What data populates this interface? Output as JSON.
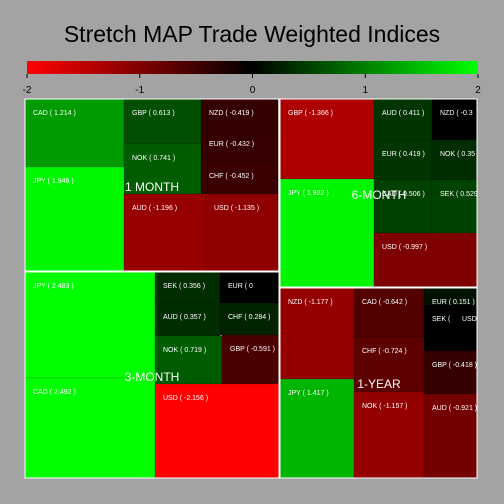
{
  "chart_data": {
    "type": "treemap",
    "title": "Stretch MAP Trade Weighted Indices",
    "colorbar": {
      "ticks": [
        -2,
        -1,
        0,
        1,
        2
      ],
      "range": [
        -2,
        2
      ],
      "colors": [
        "#ff0000",
        "#000000",
        "#00ff00"
      ]
    },
    "panels": [
      {
        "name": "1 MONTH",
        "items": [
          {
            "code": "CAD",
            "value": 1.214,
            "label": "CAD ( 1.214 )"
          },
          {
            "code": "GBP",
            "value": 0.613,
            "label": "GBP ( 0.613 )"
          },
          {
            "code": "NZD",
            "value": -0.419,
            "label": "NZD ( -0.419 )"
          },
          {
            "code": "EUR",
            "value": -0.432,
            "label": "EUR ( -0.432 )"
          },
          {
            "code": "NOK",
            "value": 0.741,
            "label": "NOK ( 0.741 )"
          },
          {
            "code": "CHF",
            "value": -0.452,
            "label": "CHF ( -0.452 )"
          },
          {
            "code": "JPY",
            "value": 1.946,
            "label": "JPY ( 1.946 )"
          },
          {
            "code": "AUD",
            "value": -1.196,
            "label": "AUD ( -1.196 )"
          },
          {
            "code": "USD",
            "value": -1.135,
            "label": "USD ( -1.135 )"
          }
        ]
      },
      {
        "name": "6-MONTH",
        "items": [
          {
            "code": "GBP",
            "value": -1.366,
            "label": "GBP ( -1.366 )"
          },
          {
            "code": "AUD",
            "value": 0.411,
            "label": "AUD ( 0.411 )"
          },
          {
            "code": "NZD",
            "value": null,
            "label": "NZD ( -0.3"
          },
          {
            "code": "EUR",
            "value": 0.419,
            "label": "EUR ( 0.419 )"
          },
          {
            "code": "NOK",
            "value": 0.35,
            "label": "NOK ( 0.35 )"
          },
          {
            "code": "JPY",
            "value": 1.922,
            "label": "JPY ( 1.922 )"
          },
          {
            "code": "CAD",
            "value": 0.506,
            "label": "CAD ( 0.506 )"
          },
          {
            "code": "SEK",
            "value": 0.529,
            "label": "SEK ( 0.529"
          },
          {
            "code": "USD",
            "value": -0.997,
            "label": "USD ( -0.997 )"
          }
        ]
      },
      {
        "name": "3-MONTH",
        "items": [
          {
            "code": "JPY",
            "value": 2.483,
            "label": "JPY ( 2.483 )"
          },
          {
            "code": "SEK",
            "value": 0.356,
            "label": "SEK ( 0.356 )"
          },
          {
            "code": "EUR",
            "value": null,
            "label": "EUR ( 0"
          },
          {
            "code": "AUD",
            "value": 0.357,
            "label": "AUD ( 0.357 )"
          },
          {
            "code": "CHF",
            "value": 0.284,
            "label": "CHF ( 0.284 )"
          },
          {
            "code": "NOK",
            "value": 0.719,
            "label": "NOK ( 0.719 )"
          },
          {
            "code": "GBP",
            "value": -0.591,
            "label": "GBP ( -0.591 )"
          },
          {
            "code": "CAD",
            "value": 2.492,
            "label": "CAD ( 2.492 )"
          },
          {
            "code": "USD",
            "value": -2.156,
            "label": "USD ( -2.156 )"
          }
        ]
      },
      {
        "name": "1-YEAR",
        "items": [
          {
            "code": "NZD",
            "value": -1.177,
            "label": "NZD ( -1.177 )"
          },
          {
            "code": "CAD",
            "value": -0.642,
            "label": "CAD ( -0.642 )"
          },
          {
            "code": "EUR",
            "value": 0.151,
            "label": "EUR ( 0.151 )"
          },
          {
            "code": "SEK",
            "value": null,
            "label": "SEK ("
          },
          {
            "code": "USD",
            "value": null,
            "label": "USD"
          },
          {
            "code": "CHF",
            "value": -0.724,
            "label": "CHF ( -0.724 )"
          },
          {
            "code": "GBP",
            "value": -0.418,
            "label": "GBP ( -0.418 )"
          },
          {
            "code": "JPY",
            "value": 1.417,
            "label": "JPY ( 1.417 )"
          },
          {
            "code": "NOK",
            "value": -1.157,
            "label": "NOK ( -1.157 )"
          },
          {
            "code": "AUD",
            "value": -0.921,
            "label": "AUD ( -0.921 )"
          }
        ]
      }
    ]
  }
}
